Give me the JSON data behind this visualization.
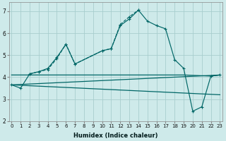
{
  "xlabel": "Humidex (Indice chaleur)",
  "bg_color": "#ceeaea",
  "grid_color": "#a8cece",
  "line_color": "#006666",
  "x_ticks": [
    0,
    1,
    2,
    3,
    4,
    5,
    6,
    7,
    8,
    9,
    10,
    11,
    12,
    13,
    14,
    15,
    16,
    17,
    18,
    19,
    20,
    21,
    22,
    23
  ],
  "y_ticks": [
    2,
    3,
    4,
    5,
    6,
    7
  ],
  "xlim": [
    -0.3,
    23.3
  ],
  "ylim": [
    2.0,
    7.4
  ],
  "series1_x": [
    0,
    1,
    2,
    3,
    4,
    5,
    6,
    7,
    10,
    11,
    12,
    13,
    14,
    15,
    16,
    17,
    18,
    19,
    20,
    21,
    22,
    23
  ],
  "series1_y": [
    3.65,
    3.5,
    4.15,
    4.25,
    4.4,
    4.9,
    5.5,
    4.6,
    5.2,
    5.3,
    6.35,
    6.65,
    7.05,
    6.55,
    6.35,
    6.2,
    4.8,
    4.4,
    2.45,
    2.65,
    4.05,
    4.1
  ],
  "series2_x": [
    2,
    3,
    4,
    5,
    6,
    7,
    10,
    11,
    12,
    13,
    14
  ],
  "series2_y": [
    4.15,
    4.25,
    4.35,
    4.85,
    5.5,
    4.6,
    5.2,
    5.3,
    6.4,
    6.75,
    7.05
  ],
  "series3_x": [
    0,
    19,
    22,
    23
  ],
  "series3_y": [
    4.1,
    4.1,
    4.05,
    4.1
  ],
  "series4_x": [
    0,
    23
  ],
  "series4_y": [
    3.65,
    4.1
  ],
  "series5_x": [
    0,
    23
  ],
  "series5_y": [
    3.65,
    3.2
  ]
}
